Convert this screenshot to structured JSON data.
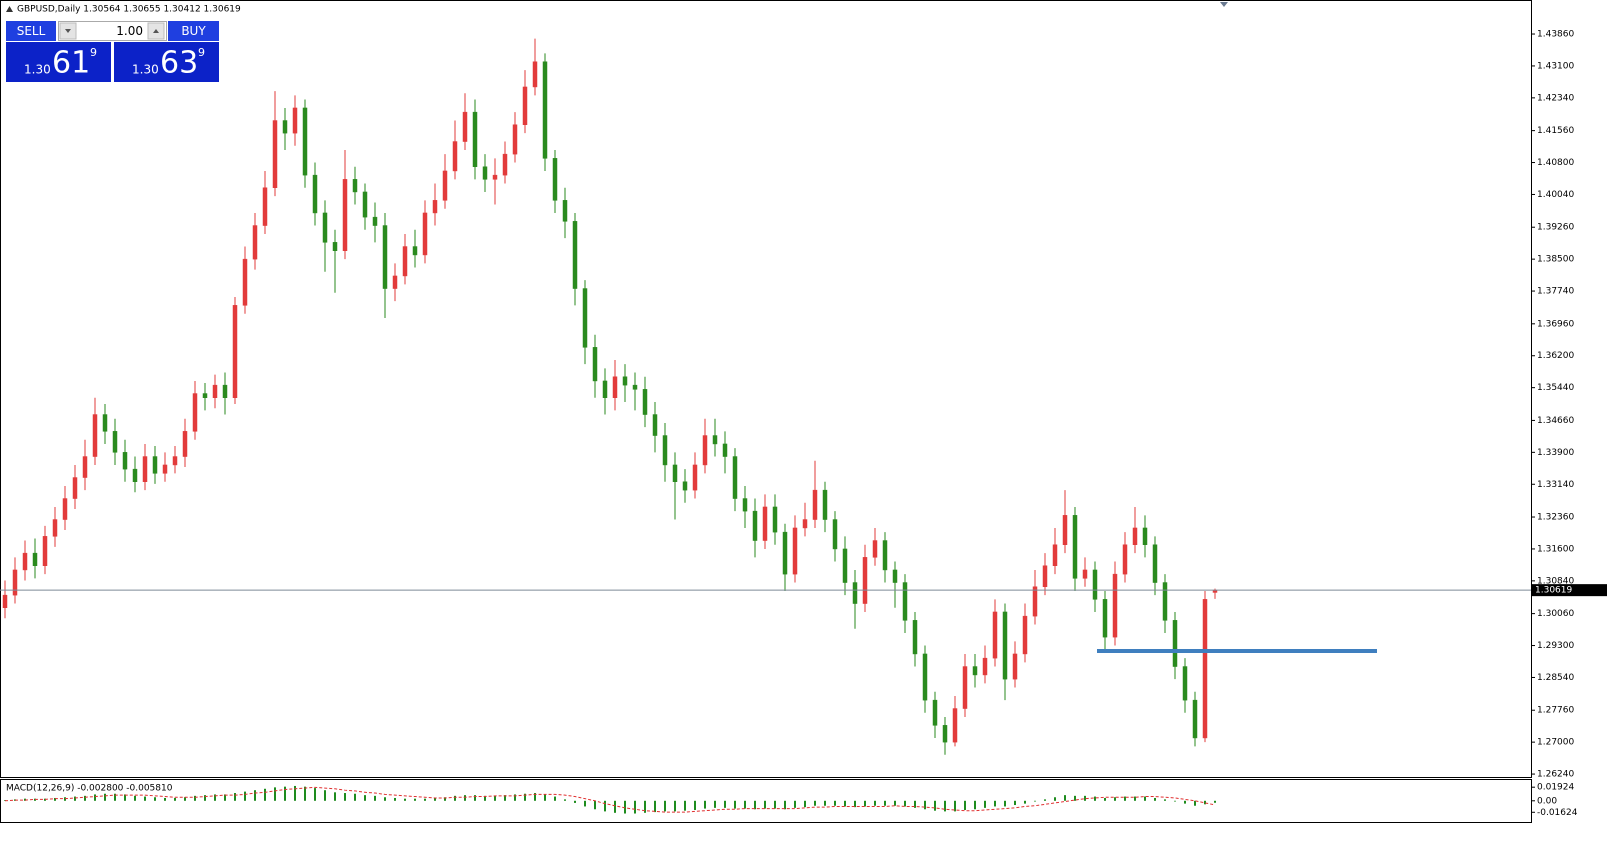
{
  "header": "GBPUSD,Daily 1.30564 1.30655 1.30412 1.30619",
  "trade_panel": {
    "sell": "SELL",
    "buy": "BUY",
    "lot": "1.00",
    "bid": {
      "big": "1.30",
      "main": "61",
      "small": "9"
    },
    "ask": {
      "big": "1.30",
      "main": "63",
      "small": "9"
    }
  },
  "chart_data": {
    "type": "candlestick",
    "up_color": "#e23b3b",
    "down_color": "#2a8a1e",
    "ylim": [
      1.2617,
      1.4467
    ],
    "yticks": [
      {
        "value": 1.4386,
        "label": "1.43860"
      },
      {
        "value": 1.431,
        "label": "1.43100"
      },
      {
        "value": 1.4234,
        "label": "1.42340"
      },
      {
        "value": 1.4156,
        "label": "1.41560"
      },
      {
        "value": 1.408,
        "label": "1.40800"
      },
      {
        "value": 1.4004,
        "label": "1.40040"
      },
      {
        "value": 1.3926,
        "label": "1.39260"
      },
      {
        "value": 1.385,
        "label": "1.38500"
      },
      {
        "value": 1.3774,
        "label": "1.37740"
      },
      {
        "value": 1.3696,
        "label": "1.36960"
      },
      {
        "value": 1.362,
        "label": "1.36200"
      },
      {
        "value": 1.3544,
        "label": "1.35440"
      },
      {
        "value": 1.3466,
        "label": "1.34660"
      },
      {
        "value": 1.339,
        "label": "1.33900"
      },
      {
        "value": 1.3314,
        "label": "1.33140"
      },
      {
        "value": 1.3236,
        "label": "1.32360"
      },
      {
        "value": 1.316,
        "label": "1.31600"
      },
      {
        "value": 1.3084,
        "label": "1.30840"
      },
      {
        "value": 1.3006,
        "label": "1.30060"
      },
      {
        "value": 1.293,
        "label": "1.29300"
      },
      {
        "value": 1.2854,
        "label": "1.28540"
      },
      {
        "value": 1.2776,
        "label": "1.27760"
      },
      {
        "value": 1.27,
        "label": "1.27000"
      },
      {
        "value": 1.2624,
        "label": "1.26240"
      }
    ],
    "candles": {
      "open": [
        1.302,
        1.305,
        1.311,
        1.315,
        1.312,
        1.319,
        1.323,
        1.328,
        1.333,
        1.338,
        1.348,
        1.344,
        1.339,
        1.335,
        1.332,
        1.338,
        1.334,
        1.336,
        1.338,
        1.344,
        1.353,
        1.352,
        1.355,
        1.352,
        1.374,
        1.385,
        1.393,
        1.402,
        1.418,
        1.415,
        1.421,
        1.405,
        1.396,
        1.389,
        1.387,
        1.404,
        1.401,
        1.395,
        1.393,
        1.378,
        1.381,
        1.388,
        1.386,
        1.396,
        1.399,
        1.406,
        1.413,
        1.42,
        1.407,
        1.404,
        1.405,
        1.41,
        1.417,
        1.426,
        1.432,
        1.409,
        1.399,
        1.394,
        1.378,
        1.364,
        1.356,
        1.352,
        1.357,
        1.355,
        1.354,
        1.348,
        1.343,
        1.336,
        1.332,
        1.33,
        1.336,
        1.343,
        1.341,
        1.338,
        1.328,
        1.325,
        1.318,
        1.326,
        1.32,
        1.31,
        1.321,
        1.323,
        1.33,
        1.323,
        1.316,
        1.308,
        1.303,
        1.314,
        1.318,
        1.311,
        1.308,
        1.299,
        1.291,
        1.28,
        1.274,
        1.27,
        1.278,
        1.288,
        1.286,
        1.29,
        1.301,
        1.285,
        1.291,
        1.3,
        1.307,
        1.312,
        1.317,
        1.324,
        1.309,
        1.311,
        1.304,
        1.295,
        1.31,
        1.317,
        1.321,
        1.317,
        1.308,
        1.299,
        1.288,
        1.28,
        1.271,
        1.30564
      ],
      "high": [
        1.3085,
        1.314,
        1.318,
        1.3185,
        1.3215,
        1.326,
        1.331,
        1.336,
        1.342,
        1.352,
        1.3505,
        1.347,
        1.342,
        1.338,
        1.341,
        1.3405,
        1.339,
        1.3405,
        1.347,
        1.356,
        1.3555,
        1.3575,
        1.358,
        1.376,
        1.388,
        1.396,
        1.406,
        1.425,
        1.421,
        1.424,
        1.423,
        1.408,
        1.399,
        1.392,
        1.411,
        1.407,
        1.403,
        1.3985,
        1.396,
        1.384,
        1.391,
        1.392,
        1.399,
        1.403,
        1.41,
        1.418,
        1.4245,
        1.423,
        1.41,
        1.409,
        1.413,
        1.42,
        1.43,
        1.4375,
        1.434,
        1.411,
        1.402,
        1.396,
        1.38,
        1.367,
        1.359,
        1.361,
        1.36,
        1.358,
        1.357,
        1.351,
        1.346,
        1.339,
        1.335,
        1.339,
        1.347,
        1.347,
        1.344,
        1.34,
        1.331,
        1.328,
        1.329,
        1.329,
        1.322,
        1.324,
        1.327,
        1.337,
        1.332,
        1.325,
        1.319,
        1.311,
        1.317,
        1.321,
        1.32,
        1.313,
        1.31,
        1.301,
        1.293,
        1.282,
        1.276,
        1.281,
        1.291,
        1.291,
        1.293,
        1.304,
        1.303,
        1.294,
        1.303,
        1.311,
        1.315,
        1.321,
        1.33,
        1.326,
        1.314,
        1.313,
        1.306,
        1.313,
        1.32,
        1.326,
        1.324,
        1.319,
        1.31,
        1.301,
        1.29,
        1.282,
        1.306,
        1.30655
      ],
      "low": [
        1.2995,
        1.303,
        1.3085,
        1.309,
        1.31,
        1.3165,
        1.3205,
        1.3255,
        1.33,
        1.336,
        1.341,
        1.336,
        1.332,
        1.3295,
        1.33,
        1.3315,
        1.332,
        1.334,
        1.3355,
        1.342,
        1.349,
        1.3495,
        1.348,
        1.3505,
        1.372,
        1.3825,
        1.391,
        1.4,
        1.411,
        1.412,
        1.402,
        1.393,
        1.382,
        1.377,
        1.385,
        1.398,
        1.392,
        1.389,
        1.371,
        1.375,
        1.379,
        1.383,
        1.384,
        1.393,
        1.397,
        1.404,
        1.411,
        1.404,
        1.401,
        1.398,
        1.403,
        1.408,
        1.415,
        1.424,
        1.406,
        1.396,
        1.39,
        1.374,
        1.36,
        1.352,
        1.348,
        1.349,
        1.351,
        1.349,
        1.345,
        1.339,
        1.332,
        1.323,
        1.327,
        1.328,
        1.334,
        1.338,
        1.334,
        1.325,
        1.321,
        1.314,
        1.316,
        1.317,
        1.306,
        1.308,
        1.319,
        1.321,
        1.32,
        1.313,
        1.305,
        1.297,
        1.301,
        1.312,
        1.308,
        1.302,
        1.296,
        1.288,
        1.277,
        1.271,
        1.267,
        1.269,
        1.276,
        1.283,
        1.284,
        1.288,
        1.28,
        1.283,
        1.289,
        1.298,
        1.305,
        1.31,
        1.315,
        1.306,
        1.307,
        1.301,
        1.292,
        1.293,
        1.308,
        1.315,
        1.314,
        1.305,
        1.296,
        1.285,
        1.277,
        1.269,
        1.27,
        1.30412
      ],
      "close": [
        1.305,
        1.311,
        1.315,
        1.312,
        1.319,
        1.323,
        1.328,
        1.333,
        1.338,
        1.348,
        1.344,
        1.339,
        1.335,
        1.332,
        1.338,
        1.334,
        1.336,
        1.338,
        1.344,
        1.353,
        1.352,
        1.355,
        1.352,
        1.374,
        1.385,
        1.393,
        1.402,
        1.418,
        1.415,
        1.421,
        1.405,
        1.396,
        1.389,
        1.387,
        1.404,
        1.401,
        1.395,
        1.393,
        1.378,
        1.381,
        1.388,
        1.386,
        1.396,
        1.399,
        1.406,
        1.413,
        1.42,
        1.407,
        1.404,
        1.405,
        1.41,
        1.417,
        1.426,
        1.432,
        1.409,
        1.399,
        1.394,
        1.378,
        1.364,
        1.356,
        1.352,
        1.357,
        1.355,
        1.354,
        1.348,
        1.343,
        1.336,
        1.332,
        1.33,
        1.336,
        1.343,
        1.341,
        1.338,
        1.328,
        1.325,
        1.318,
        1.326,
        1.32,
        1.31,
        1.321,
        1.323,
        1.33,
        1.323,
        1.316,
        1.308,
        1.303,
        1.314,
        1.318,
        1.311,
        1.308,
        1.299,
        1.291,
        1.28,
        1.274,
        1.27,
        1.278,
        1.288,
        1.286,
        1.29,
        1.301,
        1.285,
        1.291,
        1.3,
        1.307,
        1.312,
        1.317,
        1.324,
        1.309,
        1.311,
        1.304,
        1.295,
        1.31,
        1.317,
        1.321,
        1.317,
        1.308,
        1.299,
        1.288,
        1.28,
        1.271,
        1.304,
        1.30619
      ]
    },
    "horizontal_line": {
      "value": 1.2917,
      "color": "#3f7fbf"
    },
    "indicator": {
      "type": "macd",
      "title": "MACD(12,26,9) -0.002800 -0.005810",
      "ylim": [
        -0.03,
        0.028
      ],
      "yticks": [
        {
          "value": 0.01924,
          "label": "0.01924"
        },
        {
          "value": 0,
          "label": "0.00"
        },
        {
          "value": -0.01624,
          "label": "-0.01624"
        }
      ],
      "histogram": {
        "color": "#1e8c1e",
        "values": [
          0.001,
          0.002,
          0.003,
          0.003,
          0.003,
          0.004,
          0.005,
          0.006,
          0.007,
          0.009,
          0.01,
          0.01,
          0.009,
          0.007,
          0.006,
          0.005,
          0.004,
          0.004,
          0.005,
          0.007,
          0.008,
          0.009,
          0.009,
          0.011,
          0.013,
          0.015,
          0.017,
          0.019,
          0.02,
          0.021,
          0.02,
          0.018,
          0.015,
          0.012,
          0.011,
          0.01,
          0.008,
          0.007,
          0.005,
          0.004,
          0.003,
          0.003,
          0.003,
          0.004,
          0.005,
          0.007,
          0.008,
          0.008,
          0.007,
          0.007,
          0.008,
          0.009,
          0.01,
          0.011,
          0.009,
          0.006,
          0.002,
          -0.003,
          -0.008,
          -0.012,
          -0.015,
          -0.017,
          -0.018,
          -0.018,
          -0.017,
          -0.016,
          -0.015,
          -0.015,
          -0.014,
          -0.013,
          -0.011,
          -0.01,
          -0.01,
          -0.011,
          -0.011,
          -0.012,
          -0.011,
          -0.011,
          -0.012,
          -0.01,
          -0.009,
          -0.007,
          -0.007,
          -0.007,
          -0.008,
          -0.009,
          -0.008,
          -0.007,
          -0.007,
          -0.007,
          -0.008,
          -0.01,
          -0.012,
          -0.014,
          -0.015,
          -0.015,
          -0.013,
          -0.012,
          -0.01,
          -0.008,
          -0.008,
          -0.006,
          -0.004,
          -0.001,
          0.002,
          0.005,
          0.008,
          0.007,
          0.007,
          0.006,
          0.004,
          0.005,
          0.006,
          0.006,
          0.006,
          0.004,
          0.002,
          -0.001,
          -0.004,
          -0.007,
          -0.005,
          -0.0028
        ]
      },
      "signal": {
        "color": "#e03030",
        "values": [
          0.0,
          0.001,
          0.001,
          0.002,
          0.002,
          0.003,
          0.003,
          0.004,
          0.005,
          0.006,
          0.007,
          0.008,
          0.008,
          0.008,
          0.008,
          0.007,
          0.006,
          0.005,
          0.005,
          0.005,
          0.006,
          0.007,
          0.008,
          0.008,
          0.009,
          0.011,
          0.012,
          0.014,
          0.016,
          0.017,
          0.018,
          0.019,
          0.018,
          0.017,
          0.015,
          0.014,
          0.012,
          0.011,
          0.009,
          0.008,
          0.007,
          0.006,
          0.005,
          0.004,
          0.004,
          0.005,
          0.005,
          0.006,
          0.006,
          0.007,
          0.007,
          0.007,
          0.008,
          0.009,
          0.009,
          0.009,
          0.008,
          0.006,
          0.003,
          0.0,
          -0.004,
          -0.007,
          -0.01,
          -0.012,
          -0.014,
          -0.015,
          -0.016,
          -0.016,
          -0.016,
          -0.015,
          -0.014,
          -0.013,
          -0.012,
          -0.012,
          -0.011,
          -0.011,
          -0.011,
          -0.011,
          -0.011,
          -0.011,
          -0.01,
          -0.009,
          -0.009,
          -0.008,
          -0.008,
          -0.008,
          -0.008,
          -0.008,
          -0.008,
          -0.007,
          -0.008,
          -0.008,
          -0.009,
          -0.01,
          -0.012,
          -0.013,
          -0.014,
          -0.014,
          -0.013,
          -0.012,
          -0.011,
          -0.01,
          -0.008,
          -0.007,
          -0.005,
          -0.003,
          -0.001,
          0.001,
          0.003,
          0.004,
          0.005,
          0.005,
          0.005,
          0.005,
          0.006,
          0.006,
          0.005,
          0.004,
          0.002,
          0.0,
          -0.003,
          -0.00581
        ]
      }
    }
  }
}
